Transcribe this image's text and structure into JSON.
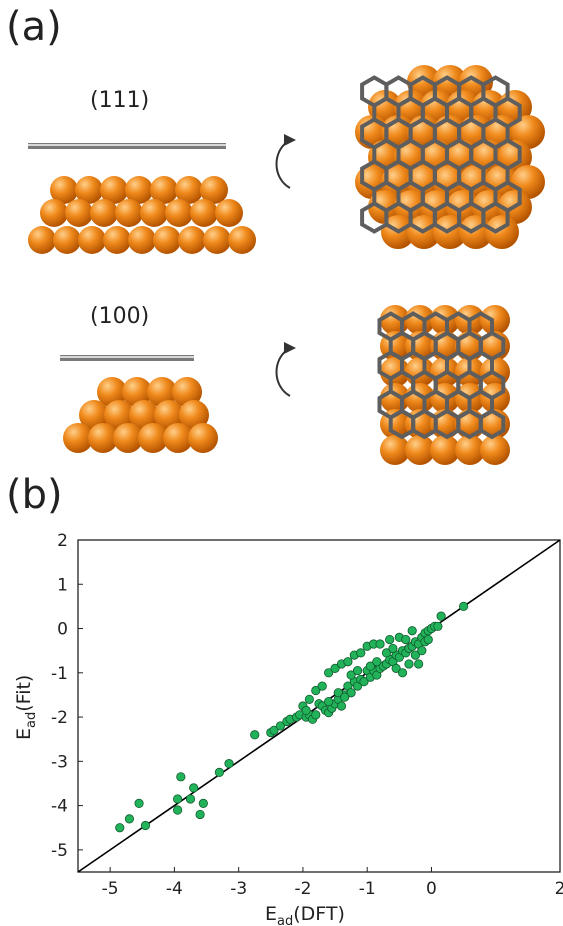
{
  "figure": {
    "panel_a_label": "(a)",
    "panel_b_label": "(b)",
    "facet_111_label": "(111)",
    "facet_100_label": "(100)"
  },
  "colors": {
    "atom_orange": "#f08a1c",
    "graphene_gray": "#6b6b6b",
    "hydrogen_white": "#e8e8e8",
    "point_green": "#22b35a",
    "line_black": "#000000"
  },
  "chart_data": {
    "type": "scatter",
    "title": "",
    "xlabel_main": "E",
    "xlabel_sub": "ad",
    "xlabel_paren": "(DFT)",
    "ylabel_main": "E",
    "ylabel_sub": "ad",
    "ylabel_paren": "(Fit)",
    "xlim": [
      -5.5,
      2
    ],
    "ylim": [
      -5.5,
      2
    ],
    "xticks": [
      -5,
      -4,
      -3,
      -2,
      -1,
      0,
      2
    ],
    "yticks": [
      2,
      1,
      0,
      -1,
      -2,
      -3,
      -4,
      -5
    ],
    "xtick_labels": [
      "-5",
      "-4",
      "-3",
      "-2",
      "-1",
      "0",
      "2"
    ],
    "ytick_labels": [
      "2",
      "1",
      "0",
      "-1",
      "-2",
      "-3",
      "-4",
      "-5"
    ],
    "grid": false,
    "reference_line": "y = x",
    "points": [
      [
        -4.85,
        -4.5
      ],
      [
        -4.7,
        -4.3
      ],
      [
        -4.55,
        -3.95
      ],
      [
        -4.45,
        -4.45
      ],
      [
        -3.95,
        -3.85
      ],
      [
        -3.9,
        -3.35
      ],
      [
        -3.95,
        -4.1
      ],
      [
        -3.75,
        -3.85
      ],
      [
        -3.7,
        -3.6
      ],
      [
        -3.6,
        -4.2
      ],
      [
        -3.55,
        -3.95
      ],
      [
        -3.3,
        -3.25
      ],
      [
        -3.15,
        -3.05
      ],
      [
        -2.75,
        -2.4
      ],
      [
        -2.5,
        -2.35
      ],
      [
        -2.45,
        -2.3
      ],
      [
        -2.35,
        -2.2
      ],
      [
        -2.25,
        -2.1
      ],
      [
        -2.2,
        -2.05
      ],
      [
        -2.1,
        -2.0
      ],
      [
        -2.05,
        -1.95
      ],
      [
        -1.95,
        -2.0
      ],
      [
        -1.9,
        -1.95
      ],
      [
        -1.85,
        -2.05
      ],
      [
        -1.8,
        -1.95
      ],
      [
        -1.75,
        -1.7
      ],
      [
        -1.7,
        -1.75
      ],
      [
        -1.65,
        -1.85
      ],
      [
        -1.6,
        -1.9
      ],
      [
        -1.55,
        -1.8
      ],
      [
        -1.5,
        -1.7
      ],
      [
        -1.45,
        -1.6
      ],
      [
        -1.4,
        -1.75
      ],
      [
        -1.35,
        -1.5
      ],
      [
        -1.3,
        -1.3
      ],
      [
        -1.25,
        -1.45
      ],
      [
        -1.2,
        -1.2
      ],
      [
        -1.15,
        -1.3
      ],
      [
        -1.1,
        -1.15
      ],
      [
        -1.05,
        -1.2
      ],
      [
        -1.0,
        -0.95
      ],
      [
        -0.95,
        -1.1
      ],
      [
        -0.9,
        -0.95
      ],
      [
        -0.85,
        -1.05
      ],
      [
        -0.8,
        -0.9
      ],
      [
        -0.75,
        -0.85
      ],
      [
        -0.7,
        -0.8
      ],
      [
        -0.65,
        -0.7
      ],
      [
        -0.6,
        -0.75
      ],
      [
        -0.55,
        -0.6
      ],
      [
        -0.5,
        -0.65
      ],
      [
        -0.45,
        -0.5
      ],
      [
        -0.4,
        -0.55
      ],
      [
        -0.35,
        -0.45
      ],
      [
        -0.3,
        -0.4
      ],
      [
        -0.25,
        -0.3
      ],
      [
        -0.2,
        -0.35
      ],
      [
        -0.15,
        -0.2
      ],
      [
        -0.1,
        -0.1
      ],
      [
        -0.05,
        -0.05
      ],
      [
        0.0,
        0.0
      ],
      [
        0.05,
        0.05
      ],
      [
        0.1,
        0.05
      ],
      [
        0.15,
        0.28
      ],
      [
        0.5,
        0.5
      ],
      [
        -1.9,
        -1.6
      ],
      [
        -1.8,
        -1.4
      ],
      [
        -1.7,
        -1.3
      ],
      [
        -1.6,
        -1.0
      ],
      [
        -1.5,
        -0.9
      ],
      [
        -1.4,
        -0.8
      ],
      [
        -1.3,
        -0.75
      ],
      [
        -1.2,
        -0.6
      ],
      [
        -1.1,
        -0.55
      ],
      [
        -1.0,
        -0.4
      ],
      [
        -0.9,
        -0.35
      ],
      [
        -0.8,
        -0.35
      ],
      [
        -0.5,
        -0.2
      ],
      [
        -0.4,
        -0.25
      ],
      [
        -0.3,
        -0.05
      ],
      [
        -0.55,
        -0.9
      ],
      [
        -0.45,
        -1.0
      ],
      [
        -0.35,
        -0.8
      ],
      [
        -0.25,
        -0.6
      ],
      [
        -0.2,
        -0.8
      ],
      [
        -0.1,
        -0.3
      ],
      [
        -0.05,
        -0.25
      ],
      [
        -1.6,
        -1.65
      ],
      [
        -1.45,
        -1.45
      ],
      [
        -1.35,
        -1.55
      ],
      [
        -1.25,
        -1.05
      ],
      [
        -1.15,
        -0.95
      ],
      [
        -0.95,
        -0.85
      ],
      [
        -0.85,
        -0.75
      ],
      [
        -0.7,
        -0.55
      ],
      [
        -0.6,
        -0.45
      ],
      [
        -2.0,
        -1.75
      ],
      [
        -1.95,
        -1.85
      ],
      [
        -0.65,
        -0.25
      ],
      [
        -0.15,
        -0.5
      ]
    ]
  }
}
